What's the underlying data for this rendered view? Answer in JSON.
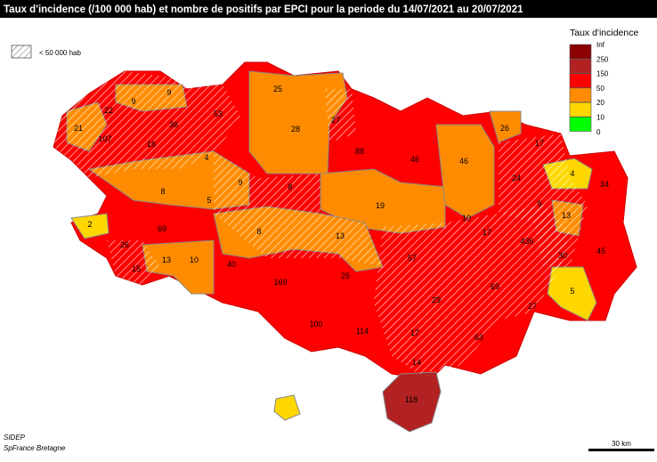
{
  "header": {
    "title": "Taux d'incidence (/100 000 hab) et nombre de positifs par EPCI pour la periode du 14/07/2021 au 20/07/2021"
  },
  "hatch_legend": {
    "label": "< 50 000 hab"
  },
  "legend": {
    "title": "Taux d'incidence",
    "items": [
      {
        "label": "Inf",
        "color": "#8b0000"
      },
      {
        "label": "250",
        "color": "#b22222"
      },
      {
        "label": "150",
        "color": "#ff0000"
      },
      {
        "label": "50",
        "color": "#ff8c00"
      },
      {
        "label": "20",
        "color": "#ffd700"
      },
      {
        "label": "10",
        "color": "#00ff00"
      },
      {
        "label": "0",
        "color": null
      }
    ]
  },
  "map_labels": [
    "9",
    "9",
    "25",
    "21",
    "22",
    "36",
    "53",
    "27",
    "26",
    "107",
    "16",
    "28",
    "17",
    "4",
    "88",
    "46",
    "46",
    "24",
    "4",
    "34",
    "8",
    "9",
    "8",
    "2",
    "5",
    "19",
    "13",
    "10",
    "17",
    "9",
    "69",
    "8",
    "13",
    "436",
    "45",
    "26",
    "13",
    "10",
    "40",
    "57",
    "30",
    "15",
    "169",
    "25",
    "69",
    "5",
    "29",
    "27",
    "100",
    "114",
    "17",
    "63",
    "14",
    "118"
  ],
  "source": {
    "line1": "SIDEP",
    "line2": "SpFrance Bretagne"
  },
  "scale_bar": {
    "label": "30 km"
  }
}
